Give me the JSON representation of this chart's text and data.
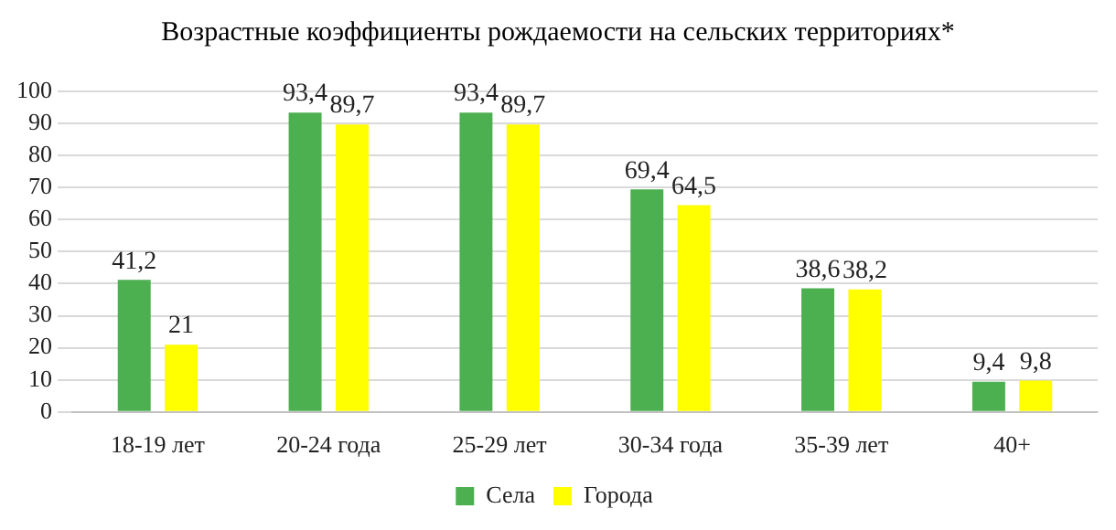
{
  "chart_data": {
    "type": "bar",
    "title": "Возрастные коэффициенты рождаемости  на сельских территориях*",
    "categories": [
      "18-19 лет",
      "20-24 года",
      "25-29 лет",
      "30-34 года",
      "35-39 лет",
      "40+"
    ],
    "series": [
      {
        "name": "Села",
        "color": "#4caf50",
        "values": [
          41.2,
          93.4,
          93.4,
          69.4,
          38.6,
          9.4
        ],
        "value_labels": [
          "41,2",
          "93,4",
          "93,4",
          "69,4",
          "38,6",
          "9,4"
        ]
      },
      {
        "name": "Города",
        "color": "#ffff00",
        "values": [
          21,
          89.7,
          89.7,
          64.5,
          38.2,
          9.8
        ],
        "value_labels": [
          "21",
          "89,7",
          "89,7",
          "64,5",
          "38,2",
          "9,8"
        ]
      }
    ],
    "ylim": [
      0,
      100
    ],
    "yticks": [
      0,
      10,
      20,
      30,
      40,
      50,
      60,
      70,
      80,
      90,
      100
    ],
    "grid": "y",
    "legend": "bottom"
  }
}
